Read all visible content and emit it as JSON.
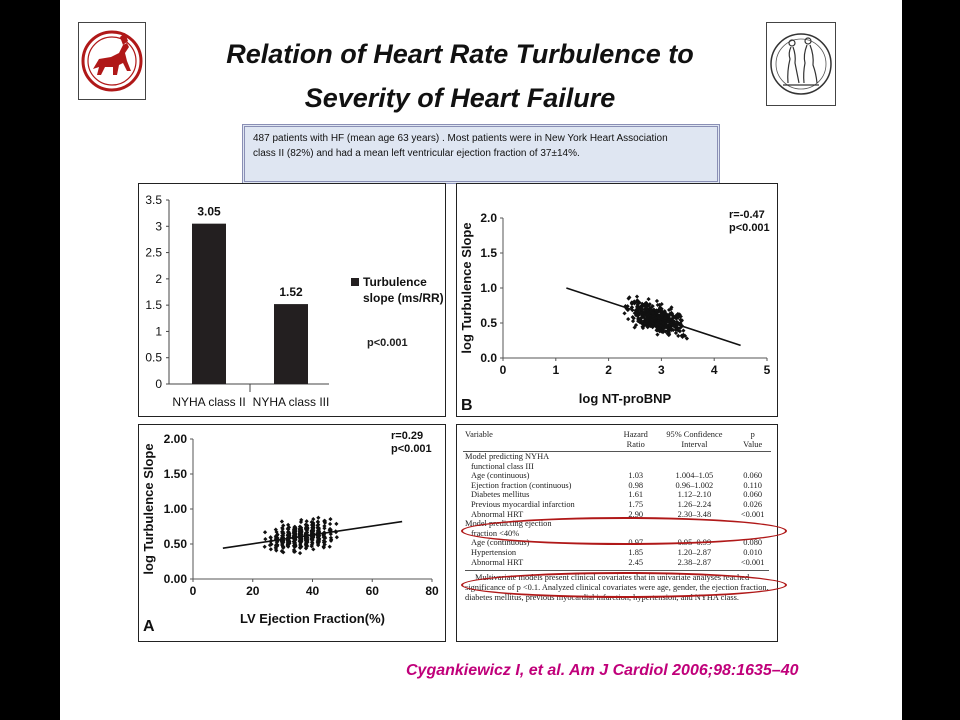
{
  "title": [
    "Relation of Heart Rate Turbulence to",
    "Severity of Heart Failure"
  ],
  "info": [
    "487 patients with HF (mean age 63 years) . Most patients were in New York Heart Association",
    "class II (82%) and had a mean left ventricular ejection fraction of 37±14%."
  ],
  "citation": "Cygankiewicz I, et al. Am J Cardiol 2006;98:1635–40",
  "logos": {
    "left": "university-emblem-centaur",
    "right": "engraving-emblem"
  },
  "colors": {
    "accent_red": "#b01818",
    "citation": "#c0007a",
    "info_bg": "#dfe6f2"
  },
  "chart_data": [
    {
      "type": "bar",
      "categories": [
        "NYHA class II",
        "NYHA class III"
      ],
      "values": [
        3.05,
        1.52
      ],
      "value_labels": [
        "3.05",
        "1.52"
      ],
      "ylim": [
        0,
        3.5
      ],
      "yticks": [
        "0",
        "0.5",
        "1",
        "1.5",
        "2",
        "2.5",
        "3",
        "3.5"
      ],
      "legend": [
        "Turbulence",
        "slope (ms/RR)"
      ],
      "annotation": "p<0.001"
    },
    {
      "type": "scatter",
      "xlabel": "log NT-proBNP",
      "ylabel": "log Turbulence Slope",
      "xlim": [
        0,
        5
      ],
      "ylim": [
        0,
        2.0
      ],
      "xticks": [
        "0",
        "1",
        "2",
        "3",
        "4",
        "5"
      ],
      "yticks": [
        "0.0",
        "0.5",
        "1.0",
        "1.5",
        "2.0"
      ],
      "stats": [
        "r=-0.47",
        "p<0.001"
      ],
      "panel_label": "B",
      "regression": [
        [
          1.2,
          1.0
        ],
        [
          4.5,
          0.18
        ]
      ],
      "x_range": [
        1.1,
        4.6
      ],
      "n_points": 487
    },
    {
      "type": "scatter",
      "xlabel": "LV Ejection Fraction(%)",
      "ylabel": "log Turbulence Slope",
      "xlim": [
        0,
        80
      ],
      "ylim": [
        0,
        2.0
      ],
      "xticks": [
        "0",
        "20",
        "40",
        "60",
        "80"
      ],
      "yticks": [
        "0.00",
        "0.50",
        "1.00",
        "1.50",
        "2.00"
      ],
      "stats": [
        "r=0.29",
        "p<0.001"
      ],
      "panel_label": "A",
      "regression": [
        [
          10,
          0.44
        ],
        [
          70,
          0.82
        ]
      ],
      "x_range": [
        10,
        70
      ],
      "n_points": 487
    },
    {
      "type": "table",
      "headers": [
        [
          "Variable"
        ],
        [
          "Hazard",
          "Ratio"
        ],
        [
          "95% Confidence",
          "Interval"
        ],
        [
          "p",
          "Value"
        ]
      ],
      "rows": [
        {
          "label": "Model predicting NYHA",
          "section": true
        },
        {
          "label": "functional class III",
          "section": true
        },
        {
          "label": "Age (continuous)",
          "hr": "1.03",
          "ci": "1.004–1.05",
          "p": "0.060"
        },
        {
          "label": "Ejection fraction (continuous)",
          "hr": "0.98",
          "ci": "0.96–1.002",
          "p": "0.110"
        },
        {
          "label": "Diabetes mellitus",
          "hr": "1.61",
          "ci": "1.12–2.10",
          "p": "0.060"
        },
        {
          "label": "Previous myocardial infarction",
          "hr": "1.75",
          "ci": "1.26–2.24",
          "p": "0.026"
        },
        {
          "label": "Abnormal HRT",
          "hr": "2.90",
          "ci": "2.30–3.48",
          "p": "<0.001",
          "circled": true
        },
        {
          "label": "Model predicting ejection",
          "section": true
        },
        {
          "label": "fraction <40%",
          "section": true
        },
        {
          "label": "Age (continuous)",
          "hr": "0.97",
          "ci": "0.95–0.99",
          "p": "0.080"
        },
        {
          "label": "Hypertension",
          "hr": "1.85",
          "ci": "1.20–2.87",
          "p": "0.010"
        },
        {
          "label": "Abnormal HRT",
          "hr": "2.45",
          "ci": "2.38–2.87",
          "p": "<0.001",
          "circled": true
        }
      ],
      "footnote": "Multivariate models present clinical covariates that in univariate analyses reached significance of p <0.1. Analyzed clinical covariates were age, gender, the ejection fraction, diabetes mellitus, previous myocardial infarction, hypertension, and NYHA class."
    }
  ]
}
